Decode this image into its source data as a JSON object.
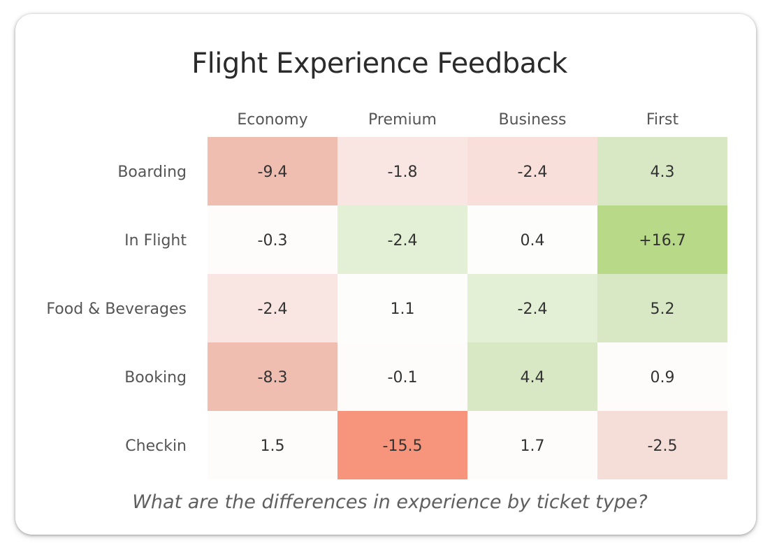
{
  "title": "Flight Experience Feedback",
  "subtitle": "What are the differences in experience by ticket type?",
  "chart_data": {
    "type": "heatmap",
    "title": "Flight Experience Feedback",
    "columns": [
      "Economy",
      "Premium",
      "Business",
      "First"
    ],
    "rows": [
      "Boarding",
      "In Flight",
      "Food & Beverages",
      "Booking",
      "Checkin"
    ],
    "values": [
      [
        -9.4,
        -1.8,
        -2.4,
        4.3
      ],
      [
        -0.3,
        -2.4,
        0.4,
        16.7
      ],
      [
        -2.4,
        1.1,
        -2.4,
        5.2
      ],
      [
        -8.3,
        -0.1,
        4.4,
        0.9
      ],
      [
        1.5,
        -15.5,
        1.7,
        -2.5
      ]
    ],
    "labels": [
      [
        "-9.4",
        "-1.8",
        "-2.4",
        "4.3"
      ],
      [
        "-0.3",
        "-2.4",
        "0.4",
        "+16.7"
      ],
      [
        "-2.4",
        "1.1",
        "-2.4",
        "5.2"
      ],
      [
        "-8.3",
        "-0.1",
        "4.4",
        "0.9"
      ],
      [
        "1.5",
        "-15.5",
        "1.7",
        "-2.5"
      ]
    ],
    "cell_colors": [
      [
        "#f0beb1",
        "#f9e6e2",
        "#f8dfda",
        "#d9e8c4"
      ],
      [
        "#fdfcfb",
        "#e3f0d5",
        "#fdfdfb",
        "#b8d987"
      ],
      [
        "#f9e6e2",
        "#fdfdfb",
        "#e3f0d5",
        "#d9e8c4"
      ],
      [
        "#f0beb1",
        "#fdfcfb",
        "#d9e8c4",
        "#fdfcfb"
      ],
      [
        "#fdfcfb",
        "#f6957b",
        "#fdfcfb",
        "#f6ded8"
      ]
    ],
    "legend": "none",
    "grid": false
  }
}
